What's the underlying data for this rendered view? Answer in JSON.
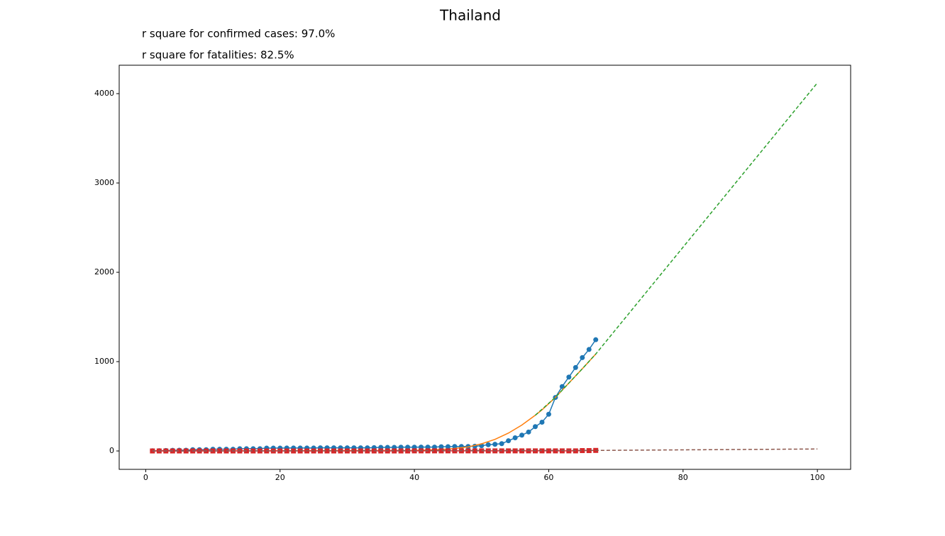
{
  "chart_data": {
    "type": "line",
    "title": "Thailand",
    "annotations": [
      "r square for confirmed cases: 97.0%",
      "r square for fatalities: 82.5%"
    ],
    "xlim": [
      -3.95,
      104.95
    ],
    "ylim": [
      -206,
      4318
    ],
    "xticks": [
      0,
      20,
      40,
      60,
      80,
      100
    ],
    "yticks": [
      0,
      1000,
      2000,
      3000,
      4000
    ],
    "grid": false,
    "series": [
      {
        "color": "#1f77b4",
        "marker": "circle",
        "dash": false,
        "x": [
          1,
          2,
          3,
          4,
          5,
          6,
          7,
          8,
          9,
          10,
          11,
          12,
          13,
          14,
          15,
          16,
          17,
          18,
          19,
          20,
          21,
          22,
          23,
          24,
          25,
          26,
          27,
          28,
          29,
          30,
          31,
          32,
          33,
          34,
          35,
          36,
          37,
          38,
          39,
          40,
          41,
          42,
          43,
          44,
          45,
          46,
          47,
          48,
          49,
          50,
          51,
          52,
          53,
          54,
          55,
          56,
          57,
          58,
          59,
          60,
          61,
          62,
          63,
          64,
          65,
          66,
          67
        ],
        "values": [
          2,
          3,
          5,
          7,
          8,
          8,
          14,
          14,
          14,
          19,
          19,
          19,
          19,
          25,
          25,
          25,
          25,
          32,
          32,
          32,
          33,
          33,
          33,
          33,
          33,
          35,
          35,
          35,
          35,
          35,
          35,
          35,
          35,
          37,
          40,
          40,
          40,
          42,
          42,
          42,
          43,
          43,
          43,
          47,
          48,
          50,
          50,
          50,
          53,
          59,
          70,
          75,
          82,
          114,
          147,
          177,
          212,
          272,
          322,
          411,
          599,
          721,
          827,
          934,
          1045,
          1136,
          1245
        ]
      },
      {
        "color": "#ff7f0e",
        "marker": "none",
        "dash": false,
        "x": [
          1,
          40,
          45,
          48,
          50,
          52,
          54,
          56,
          58,
          59,
          60,
          61,
          63,
          65,
          67
        ],
        "values": [
          0,
          5,
          20,
          45,
          80,
          130,
          200,
          290,
          400,
          460,
          530,
          600,
          760,
          920,
          1085
        ]
      },
      {
        "color": "#2ca02c",
        "marker": "none",
        "dash": true,
        "x": [
          58,
          61,
          63,
          65,
          67,
          70,
          80,
          90,
          100
        ],
        "values": [
          400,
          600,
          760,
          920,
          1085,
          1361,
          2281,
          3201,
          4121
        ]
      },
      {
        "color": "#d62728",
        "marker": "square",
        "dash": false,
        "x": [
          1,
          2,
          3,
          4,
          5,
          6,
          7,
          8,
          9,
          10,
          11,
          12,
          13,
          14,
          15,
          16,
          17,
          18,
          19,
          20,
          21,
          22,
          23,
          24,
          25,
          26,
          27,
          28,
          29,
          30,
          31,
          32,
          33,
          34,
          35,
          36,
          37,
          38,
          39,
          40,
          41,
          42,
          43,
          44,
          45,
          46,
          47,
          48,
          49,
          50,
          51,
          52,
          53,
          54,
          55,
          56,
          57,
          58,
          59,
          60,
          61,
          62,
          63,
          64,
          65,
          66,
          67
        ],
        "values": [
          0,
          0,
          0,
          0,
          0,
          0,
          0,
          0,
          0,
          0,
          0,
          0,
          0,
          0,
          0,
          0,
          0,
          0,
          0,
          0,
          0,
          0,
          0,
          0,
          0,
          0,
          0,
          0,
          0,
          0,
          0,
          0,
          0,
          0,
          0,
          0,
          0,
          0,
          0,
          1,
          1,
          1,
          1,
          1,
          1,
          1,
          1,
          1,
          1,
          1,
          1,
          1,
          1,
          1,
          1,
          1,
          1,
          1,
          1,
          1,
          1,
          1,
          1,
          1,
          4,
          4,
          6
        ]
      },
      {
        "color": "#9467bd",
        "marker": "none",
        "dash": true,
        "x": [
          1,
          67
        ],
        "values": [
          0,
          6
        ]
      },
      {
        "color": "#8c564b",
        "marker": "none",
        "dash": true,
        "x": [
          1,
          67,
          100
        ],
        "values": [
          0,
          6,
          22
        ]
      }
    ]
  }
}
